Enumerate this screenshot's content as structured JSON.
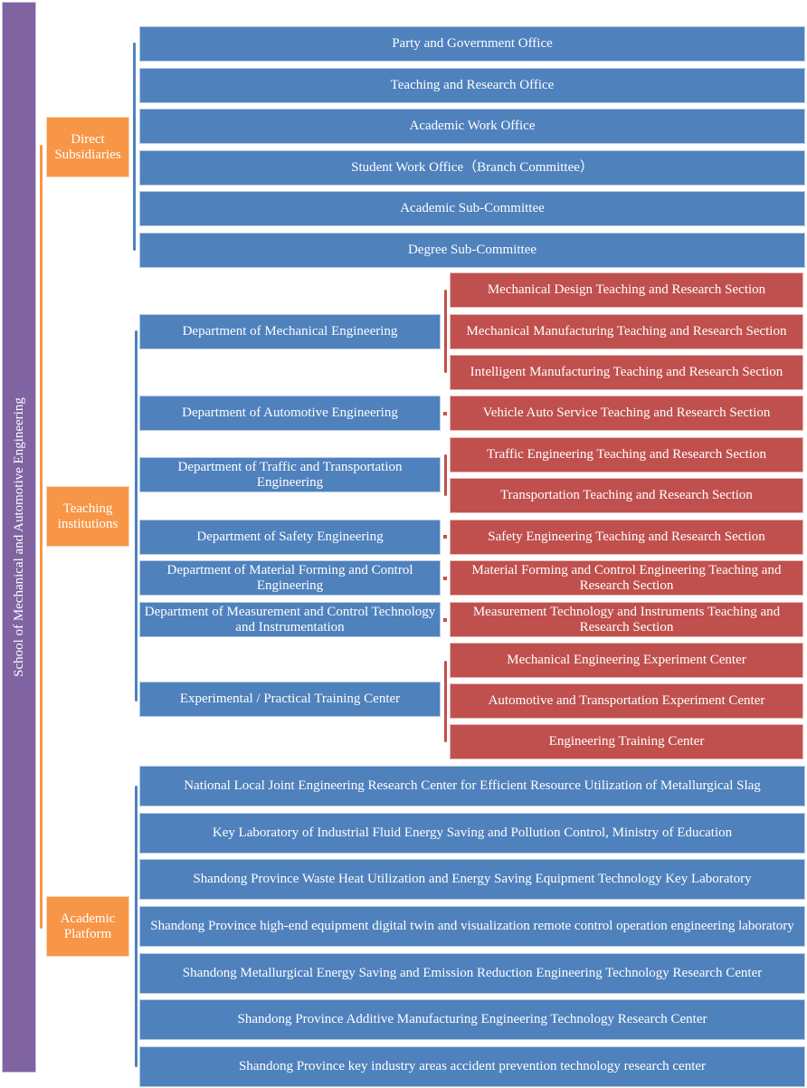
{
  "root": "School of Mechanical and Automotive Engineering",
  "categories": {
    "direct": "Direct Subsidiaries",
    "teaching": "Teaching institutions",
    "academic": "Academic Platform"
  },
  "direct_subsidiaries": [
    "Party and Government Office",
    "Teaching and Research Office",
    "Academic Work Office",
    "Student Work Office（Branch Committee）",
    "Academic Sub-Committee",
    "Degree Sub-Committee"
  ],
  "departments": [
    "Department of Mechanical Engineering",
    "Department of Automotive Engineering",
    "Department of Traffic and Transportation Engineering",
    "Department of Safety Engineering",
    "Department of Material Forming and Control Engineering",
    "Department of Measurement and Control Technology and Instrumentation",
    "Experimental / Practical Training Center"
  ],
  "sections": [
    "Mechanical Design Teaching and Research Section",
    "Mechanical Manufacturing Teaching and Research Section",
    "Intelligent Manufacturing Teaching and Research Section",
    "Vehicle Auto Service Teaching and Research Section",
    "Traffic Engineering Teaching and Research Section",
    "Transportation Teaching and Research Section",
    "Safety Engineering Teaching and Research Section",
    "Material Forming and Control Engineering Teaching and Research Section",
    "Measurement Technology and Instruments Teaching and Research Section",
    "Mechanical Engineering Experiment Center",
    "Automotive and Transportation Experiment Center",
    "Engineering Training Center"
  ],
  "academic_platforms": [
    "National Local Joint Engineering Research Center for Efficient Resource Utilization of Metallurgical Slag",
    "Key Laboratory of Industrial Fluid Energy Saving and Pollution Control, Ministry of Education",
    "Shandong Province Waste Heat Utilization and Energy Saving Equipment Technology Key Laboratory",
    "Shandong Province high-end equipment digital twin and visualization remote control operation engineering laboratory",
    "Shandong Metallurgical Energy Saving and Emission Reduction Engineering Technology Research Center",
    "Shandong Province Additive Manufacturing Engineering Technology Research Center",
    "Shandong Province key industry areas accident prevention technology research center"
  ],
  "colors": {
    "root": "#8064a2",
    "category": "#f79646",
    "unit": "#4f81bd",
    "section": "#c0504d"
  }
}
